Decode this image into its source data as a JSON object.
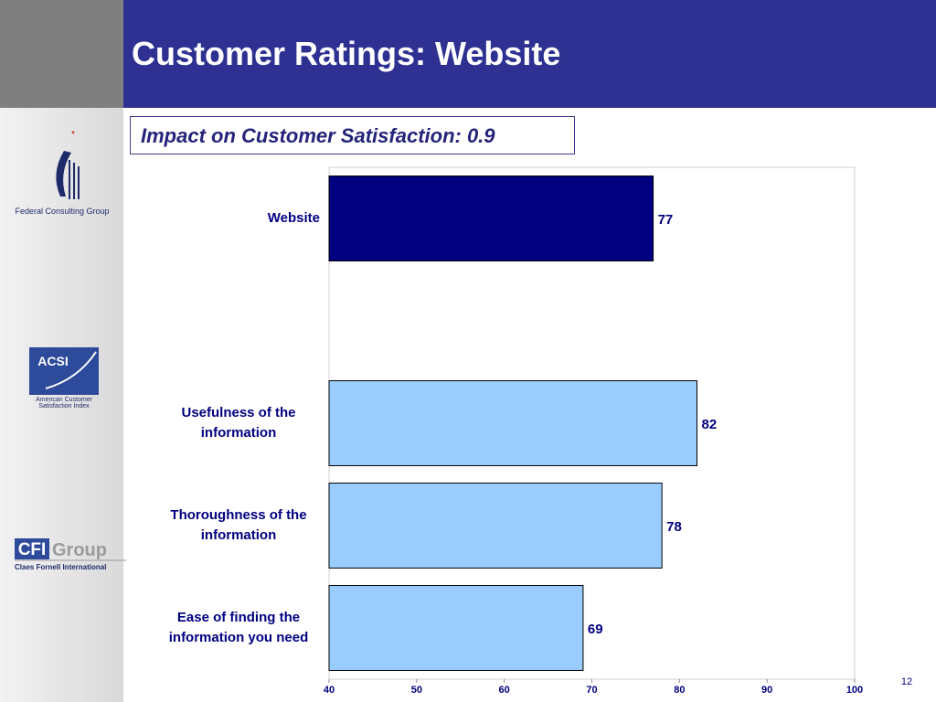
{
  "header": {
    "title": "Customer Ratings: Website"
  },
  "subtitle": "Impact on Customer Satisfaction: 0.9",
  "logos": {
    "fcg": "Federal Consulting Group",
    "acsi": "ACSI",
    "acsi_name": "American Customer Satisfaction Index",
    "cfi_a": "CFI",
    "cfi_b": "Group",
    "cfi_name": "Claes Fornell International"
  },
  "page_number": "12",
  "chart_data": {
    "type": "hbar",
    "categories": [
      "Website",
      null,
      "Usefulness of the information",
      "Thoroughness of the information",
      "Ease of finding the information you need"
    ],
    "values": [
      77,
      null,
      82,
      78,
      69
    ],
    "colors": [
      "#000080",
      null,
      "#99ccff",
      "#99ccff",
      "#99ccff"
    ],
    "xlim": [
      40,
      100
    ],
    "xticks": [
      40,
      50,
      60,
      70,
      80,
      90,
      100
    ],
    "grid": false
  }
}
